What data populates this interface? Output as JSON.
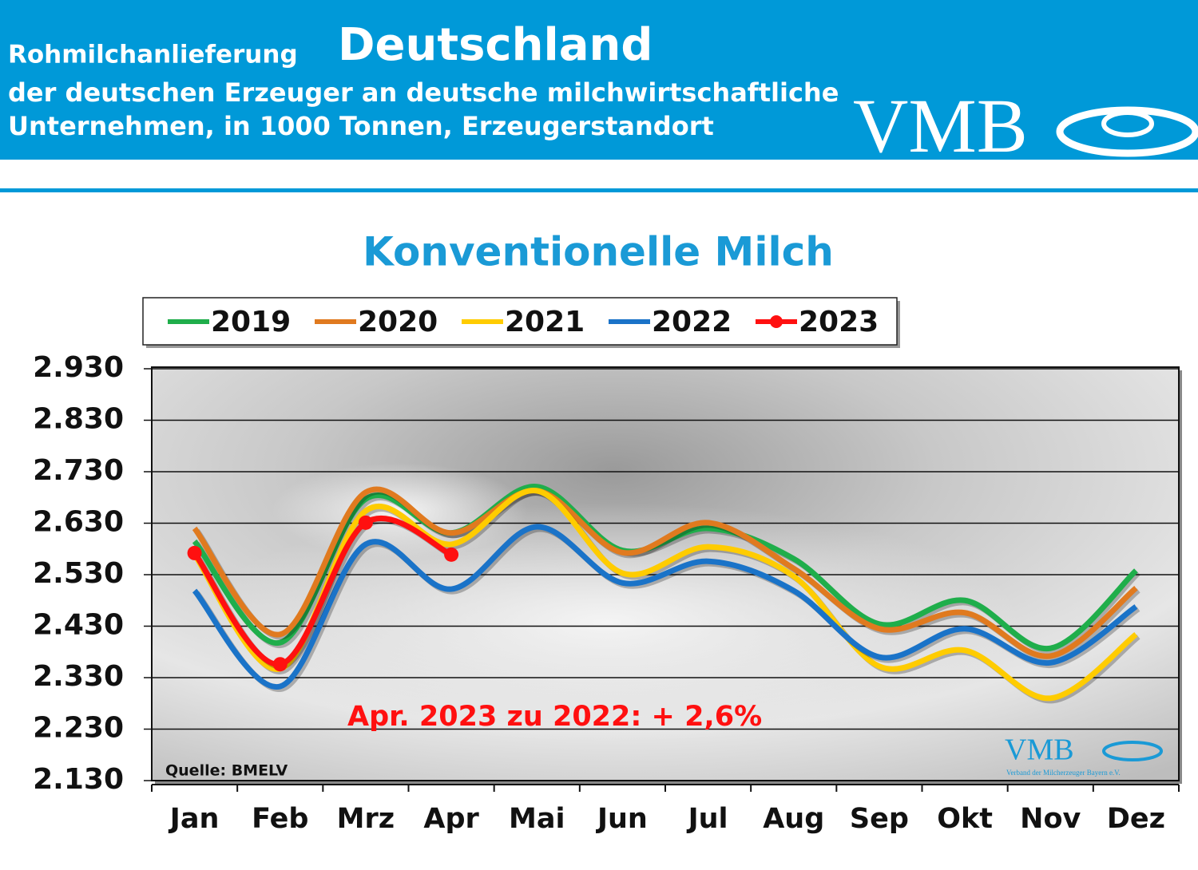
{
  "header": {
    "kicker": "Rohmilchanlieferung",
    "title": "Deutschland",
    "subtitle_line1": "der deutschen Erzeuger an deutsche milchwirtschaftliche",
    "subtitle_line2": "Unternehmen, in 1000 Tonnen, Erzeugerstandort",
    "logo": "VMB"
  },
  "chart_data": {
    "type": "line",
    "title": "Konventionelle Milch",
    "categories": [
      "Jan",
      "Feb",
      "Mrz",
      "Apr",
      "Mai",
      "Jun",
      "Jul",
      "Aug",
      "Sep",
      "Okt",
      "Nov",
      "Dez"
    ],
    "series": [
      {
        "name": "2019",
        "color": "#1fae4b",
        "values": [
          2595,
          2398,
          2677,
          2611,
          2701,
          2577,
          2620,
          2561,
          2434,
          2480,
          2387,
          2538
        ]
      },
      {
        "name": "2020",
        "color": "#e07a1f",
        "values": [
          2620,
          2414,
          2690,
          2611,
          2693,
          2573,
          2631,
          2542,
          2425,
          2456,
          2372,
          2504
        ]
      },
      {
        "name": "2021",
        "color": "#ffcc00",
        "values": [
          2569,
          2347,
          2654,
          2589,
          2693,
          2533,
          2584,
          2527,
          2352,
          2383,
          2290,
          2414
        ]
      },
      {
        "name": "2022",
        "color": "#1a73c8",
        "values": [
          2499,
          2313,
          2589,
          2502,
          2623,
          2514,
          2556,
          2499,
          2370,
          2425,
          2359,
          2468
        ]
      },
      {
        "name": "2023",
        "color": "#ff1010",
        "marker": true,
        "values": [
          2572,
          2356,
          2631,
          2569,
          null,
          null,
          null,
          null,
          null,
          null,
          null,
          null
        ]
      }
    ],
    "ylim": [
      2130,
      2930
    ],
    "yticks": [
      {
        "value": 2130,
        "label": "2.130"
      },
      {
        "value": 2230,
        "label": "2.230"
      },
      {
        "value": 2330,
        "label": "2.330"
      },
      {
        "value": 2430,
        "label": "2.430"
      },
      {
        "value": 2530,
        "label": "2.530"
      },
      {
        "value": 2630,
        "label": "2.630"
      },
      {
        "value": 2730,
        "label": "2.730"
      },
      {
        "value": 2830,
        "label": "2.830"
      },
      {
        "value": 2930,
        "label": "2.930"
      }
    ],
    "grid": true,
    "annotation": "Apr. 2023 zu 2022: + 2,6%",
    "source": "Quelle: BMELV",
    "watermark": "VMB",
    "watermark_sub": "Verband der Milcherzeuger Bayern e.V."
  }
}
